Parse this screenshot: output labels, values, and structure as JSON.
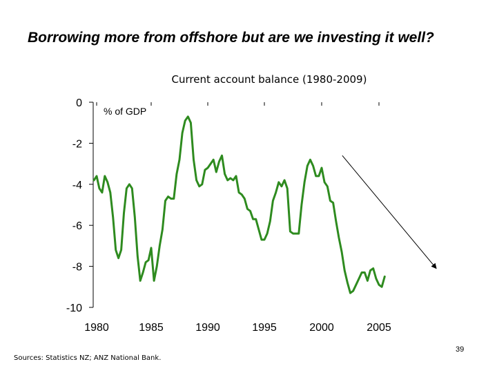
{
  "slide": {
    "title": "Borrowing more from offshore but are we investing it well?",
    "sources": "Sources:  Statistics NZ; ANZ National Bank.",
    "page_number": "39"
  },
  "chart_data": {
    "type": "line",
    "title": "Current account balance (1980-2009)",
    "unit_label": "% of GDP",
    "xlabel": "",
    "ylabel": "",
    "xlim": [
      1980,
      2009.5
    ],
    "ylim": [
      -10,
      0
    ],
    "x_ticks": [
      1980,
      1985,
      1990,
      1995,
      2000,
      2005
    ],
    "x_tick_labels": [
      "1980",
      "1985",
      "1990",
      "1995",
      "2000",
      "2005"
    ],
    "y_ticks": [
      0,
      -2,
      -4,
      -6,
      -8,
      -10
    ],
    "y_tick_labels": [
      "0",
      "-2",
      "-4",
      "-6",
      "-8",
      "-10"
    ],
    "grid": false,
    "legend": "none",
    "line_color": "#2e8b1f",
    "arrow_color": "#000000",
    "series": [
      {
        "values": [
          [
            1979.75,
            -3.8
          ],
          [
            1980.0,
            -3.6
          ],
          [
            1980.25,
            -4.2
          ],
          [
            1980.5,
            -4.4
          ],
          [
            1980.75,
            -3.6
          ],
          [
            1981.0,
            -3.9
          ],
          [
            1981.25,
            -4.4
          ],
          [
            1981.5,
            -5.6
          ],
          [
            1981.75,
            -7.2
          ],
          [
            1982.0,
            -7.6
          ],
          [
            1982.25,
            -7.2
          ],
          [
            1982.5,
            -5.4
          ],
          [
            1982.75,
            -4.2
          ],
          [
            1983.0,
            -4.0
          ],
          [
            1983.25,
            -4.2
          ],
          [
            1983.5,
            -5.6
          ],
          [
            1983.75,
            -7.5
          ],
          [
            1984.0,
            -8.7
          ],
          [
            1984.25,
            -8.3
          ],
          [
            1984.5,
            -7.8
          ],
          [
            1984.75,
            -7.7
          ],
          [
            1985.0,
            -7.1
          ],
          [
            1985.25,
            -8.7
          ],
          [
            1985.5,
            -8.0
          ],
          [
            1985.75,
            -7.0
          ],
          [
            1986.0,
            -6.2
          ],
          [
            1986.25,
            -4.8
          ],
          [
            1986.5,
            -4.6
          ],
          [
            1986.75,
            -4.7
          ],
          [
            1987.0,
            -4.7
          ],
          [
            1987.25,
            -3.5
          ],
          [
            1987.5,
            -2.8
          ],
          [
            1987.75,
            -1.5
          ],
          [
            1988.0,
            -0.9
          ],
          [
            1988.25,
            -0.7
          ],
          [
            1988.5,
            -1.0
          ],
          [
            1988.75,
            -2.8
          ],
          [
            1989.0,
            -3.8
          ],
          [
            1989.25,
            -4.1
          ],
          [
            1989.5,
            -4.0
          ],
          [
            1989.75,
            -3.3
          ],
          [
            1990.0,
            -3.2
          ],
          [
            1990.25,
            -3.0
          ],
          [
            1990.5,
            -2.8
          ],
          [
            1990.75,
            -3.4
          ],
          [
            1991.0,
            -2.9
          ],
          [
            1991.25,
            -2.6
          ],
          [
            1991.5,
            -3.5
          ],
          [
            1991.75,
            -3.8
          ],
          [
            1992.0,
            -3.7
          ],
          [
            1992.25,
            -3.8
          ],
          [
            1992.5,
            -3.6
          ],
          [
            1992.75,
            -4.4
          ],
          [
            1993.0,
            -4.5
          ],
          [
            1993.25,
            -4.7
          ],
          [
            1993.5,
            -5.2
          ],
          [
            1993.75,
            -5.3
          ],
          [
            1994.0,
            -5.7
          ],
          [
            1994.25,
            -5.7
          ],
          [
            1994.5,
            -6.2
          ],
          [
            1994.75,
            -6.7
          ],
          [
            1995.0,
            -6.7
          ],
          [
            1995.25,
            -6.4
          ],
          [
            1995.5,
            -5.8
          ],
          [
            1995.75,
            -4.8
          ],
          [
            1996.0,
            -4.4
          ],
          [
            1996.25,
            -3.9
          ],
          [
            1996.5,
            -4.1
          ],
          [
            1996.75,
            -3.8
          ],
          [
            1997.0,
            -4.2
          ],
          [
            1997.25,
            -6.3
          ],
          [
            1997.5,
            -6.4
          ],
          [
            1997.75,
            -6.4
          ],
          [
            1998.0,
            -6.4
          ],
          [
            1998.25,
            -5.0
          ],
          [
            1998.5,
            -3.9
          ],
          [
            1998.75,
            -3.1
          ],
          [
            1999.0,
            -2.8
          ],
          [
            1999.25,
            -3.1
          ],
          [
            1999.5,
            -3.6
          ],
          [
            1999.75,
            -3.6
          ],
          [
            2000.0,
            -3.2
          ],
          [
            2000.25,
            -3.9
          ],
          [
            2000.5,
            -4.1
          ],
          [
            2000.75,
            -4.8
          ],
          [
            2001.0,
            -4.9
          ],
          [
            2001.25,
            -5.8
          ],
          [
            2001.5,
            -6.6
          ],
          [
            2001.75,
            -7.3
          ],
          [
            2002.0,
            -8.2
          ],
          [
            2002.25,
            -8.8
          ],
          [
            2002.5,
            -9.3
          ],
          [
            2002.75,
            -9.2
          ],
          [
            2003.0,
            -8.9
          ],
          [
            2003.25,
            -8.6
          ],
          [
            2003.5,
            -8.3
          ],
          [
            2003.75,
            -8.3
          ],
          [
            2004.0,
            -8.7
          ],
          [
            2004.25,
            -8.2
          ],
          [
            2004.5,
            -8.1
          ],
          [
            2004.75,
            -8.6
          ],
          [
            2005.0,
            -8.9
          ],
          [
            2005.25,
            -9.0
          ],
          [
            2005.5,
            -8.5
          ]
        ]
      }
    ],
    "annotation": {
      "type": "arrow",
      "from": [
        2001.8,
        -2.6
      ],
      "to": [
        2010.0,
        -8.1
      ]
    }
  }
}
